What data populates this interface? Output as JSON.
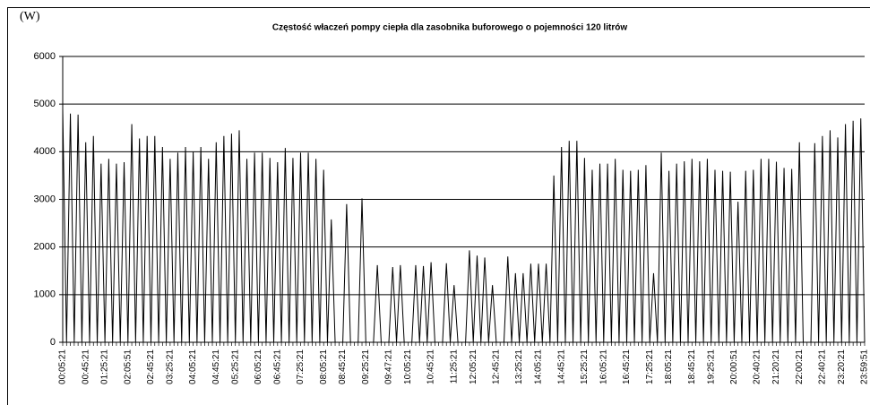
{
  "chart_data": {
    "type": "line",
    "title": "Częstość właczeń pompy ciepła dla zasobnika buforowego o pojemności 120 litrów",
    "y_label": "(W)",
    "ylim": [
      0,
      6000
    ],
    "yticks": [
      0,
      1000,
      2000,
      3000,
      4000,
      5000,
      6000
    ],
    "grid": true,
    "categories": [
      "00:05:21",
      null,
      null,
      null,
      null,
      null,
      "00:45:21",
      null,
      null,
      null,
      null,
      "01:25:21",
      null,
      null,
      null,
      null,
      null,
      "02:05:51",
      null,
      null,
      null,
      null,
      null,
      "02:45:21",
      null,
      null,
      null,
      null,
      "03:25:21",
      null,
      null,
      null,
      null,
      null,
      "04:05:21",
      null,
      null,
      null,
      null,
      null,
      "04:45:21",
      null,
      null,
      null,
      null,
      "05:25:21",
      null,
      null,
      null,
      null,
      null,
      "06:05:21",
      null,
      null,
      null,
      null,
      "06:45:21",
      null,
      null,
      null,
      null,
      null,
      "07:25:21",
      null,
      null,
      null,
      null,
      null,
      "08:05:21",
      null,
      null,
      null,
      null,
      "08:45:21",
      null,
      null,
      null,
      null,
      null,
      "09:25:21",
      null,
      null,
      null,
      null,
      null,
      "09:47:21",
      null,
      null,
      null,
      null,
      "10:05:21",
      null,
      null,
      null,
      null,
      null,
      "10:45:21",
      null,
      null,
      null,
      null,
      null,
      "11:25:21",
      null,
      null,
      null,
      null,
      "12:05:21",
      null,
      null,
      null,
      null,
      null,
      "12:45:21",
      null,
      null,
      null,
      null,
      null,
      "13:25:21",
      null,
      null,
      null,
      null,
      "14:05:21",
      null,
      null,
      null,
      null,
      null,
      "14:45:21",
      null,
      null,
      null,
      null,
      null,
      "15:25:21",
      null,
      null,
      null,
      null,
      "16:05:21",
      null,
      null,
      null,
      null,
      null,
      "16:45:21",
      null,
      null,
      null,
      null,
      null,
      "17:25:21",
      null,
      null,
      null,
      null,
      "18:05:21",
      null,
      null,
      null,
      null,
      null,
      "18:45:21",
      null,
      null,
      null,
      null,
      "19:25:21",
      null,
      null,
      null,
      null,
      null,
      "20:00:51",
      null,
      null,
      null,
      null,
      null,
      "20:40:21",
      null,
      null,
      null,
      null,
      "21:20:21",
      null,
      null,
      null,
      null,
      null,
      "22:00:21",
      null,
      null,
      null,
      null,
      null,
      "22:40:21",
      null,
      null,
      null,
      null,
      "23:20:21",
      null,
      null,
      null,
      null,
      null,
      "23:59:51"
    ],
    "series": [
      {
        "color": "#000000",
        "values": [
          4900,
          0,
          4800,
          0,
          4780,
          0,
          4200,
          0,
          4330,
          0,
          3750,
          0,
          3850,
          0,
          3750,
          0,
          3780,
          0,
          4580,
          0,
          4280,
          0,
          4330,
          0,
          4330,
          0,
          4100,
          0,
          3850,
          0,
          3980,
          0,
          4100,
          0,
          4000,
          0,
          4100,
          0,
          3850,
          0,
          4200,
          0,
          4330,
          0,
          4380,
          0,
          4450,
          0,
          3850,
          0,
          3980,
          0,
          3980,
          0,
          3870,
          0,
          3780,
          0,
          4080,
          0,
          3870,
          0,
          3980,
          0,
          3980,
          0,
          3850,
          0,
          3620,
          0,
          2580,
          0,
          0,
          0,
          2900,
          0,
          0,
          0,
          3020,
          0,
          0,
          0,
          1620,
          0,
          0,
          0,
          1580,
          0,
          1620,
          0,
          0,
          0,
          1620,
          0,
          1600,
          0,
          1680,
          0,
          0,
          0,
          1660,
          0,
          1200,
          0,
          0,
          0,
          1930,
          0,
          1820,
          0,
          1780,
          0,
          1200,
          0,
          0,
          0,
          1800,
          0,
          1450,
          0,
          1450,
          0,
          1650,
          0,
          1650,
          0,
          1650,
          0,
          3500,
          0,
          4100,
          0,
          4230,
          0,
          4230,
          0,
          3870,
          0,
          3620,
          0,
          3750,
          0,
          3750,
          0,
          3850,
          0,
          3620,
          0,
          3600,
          0,
          3620,
          0,
          3720,
          0,
          1450,
          0,
          3980,
          0,
          3600,
          0,
          3750,
          0,
          3800,
          0,
          3850,
          0,
          3800,
          0,
          3850,
          0,
          3620,
          0,
          3600,
          0,
          3580,
          0,
          2950,
          0,
          3600,
          0,
          3620,
          0,
          3850,
          0,
          3850,
          0,
          3790,
          0,
          3660,
          0,
          3640,
          0,
          4200,
          0,
          0,
          0,
          4180,
          0,
          4330,
          0,
          4450,
          0,
          4300,
          0,
          4580,
          0,
          4650,
          0,
          4700,
          0
        ]
      }
    ]
  }
}
